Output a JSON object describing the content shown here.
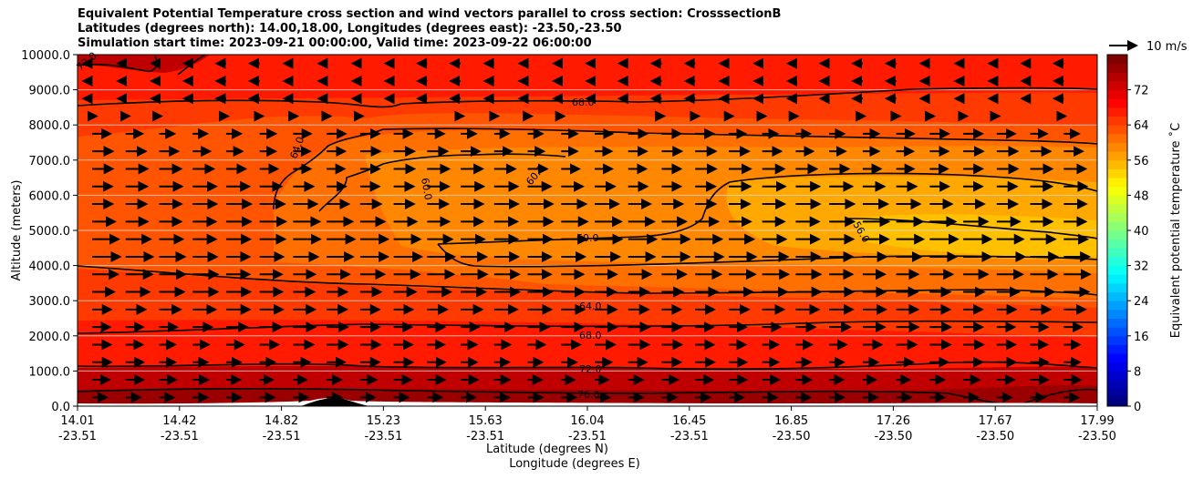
{
  "title": {
    "line1": "Equivalent Potential Temperature cross section and wind vectors parallel to cross section: CrosssectionB",
    "line2": "Latitudes (degrees north): 14.00,18.00, Longitudes (degrees east): -23.50,-23.50",
    "line3": "Simulation start time: 2023-09-21 00:00:00, Valid time: 2023-09-22 06:00:00"
  },
  "chart_data": {
    "type": "heatmap",
    "ylabel": "Altitude (meters)",
    "xlabel_lat": "Latitude (degrees N)",
    "xlabel_lon": "Longitude (degrees E)",
    "ylim": [
      0,
      10000
    ],
    "yticks": [
      "0.0",
      "1000.0",
      "2000.0",
      "3000.0",
      "4000.0",
      "5000.0",
      "6000.0",
      "7000.0",
      "8000.0",
      "9000.0",
      "10000.0"
    ],
    "xticks": [
      {
        "lat": "14.01",
        "lon": "-23.51"
      },
      {
        "lat": "14.42",
        "lon": "-23.51"
      },
      {
        "lat": "14.82",
        "lon": "-23.51"
      },
      {
        "lat": "15.23",
        "lon": "-23.51"
      },
      {
        "lat": "15.63",
        "lon": "-23.51"
      },
      {
        "lat": "16.04",
        "lon": "-23.51"
      },
      {
        "lat": "16.45",
        "lon": "-23.51"
      },
      {
        "lat": "16.85",
        "lon": "-23.50"
      },
      {
        "lat": "17.26",
        "lon": "-23.50"
      },
      {
        "lat": "17.67",
        "lon": "-23.50"
      },
      {
        "lat": "17.99",
        "lon": "-23.50"
      }
    ],
    "colorbar": {
      "label": "Equivalent potential temperature ˚C",
      "ticks": [
        "0",
        "8",
        "16",
        "24",
        "32",
        "40",
        "48",
        "56",
        "64",
        "72"
      ],
      "range": [
        0,
        80
      ]
    },
    "quiver_key": "10 m/s",
    "contour_labels": [
      "72.0",
      "72.0",
      "72.0",
      "68.0",
      "64.0",
      "60.0",
      "60.0",
      "60.0",
      "60.0",
      "60.0",
      "56.0",
      "60.0",
      "64.0",
      "68.0",
      "72.0",
      "76.0",
      "76.0",
      "76.0"
    ],
    "contour_levels": [
      56,
      60,
      64,
      68,
      72,
      76
    ],
    "wind": "mostly positive (northward) 5-10 m/s between 500 m and 8000 m, near zero or slightly negative above 8500 m"
  }
}
